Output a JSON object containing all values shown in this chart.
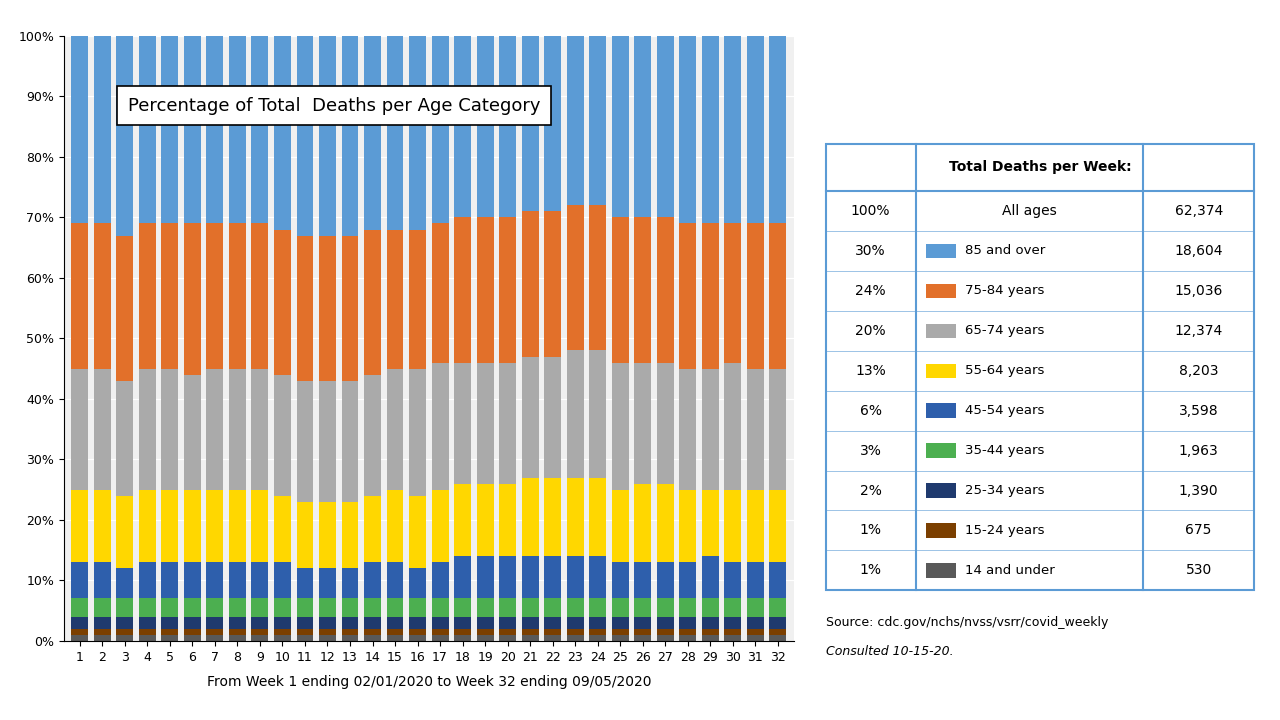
{
  "title": "Percentage of Total  Deaths per Age Category",
  "xlabel": "From Week 1 ending 02/01/2020 to Week 32 ending 09/05/2020",
  "weeks": [
    1,
    2,
    3,
    4,
    5,
    6,
    7,
    8,
    9,
    10,
    11,
    12,
    13,
    14,
    15,
    16,
    17,
    18,
    19,
    20,
    21,
    22,
    23,
    24,
    25,
    26,
    27,
    28,
    29,
    30,
    31,
    32
  ],
  "data": {
    "14 and under": [
      1,
      1,
      1,
      1,
      1,
      1,
      1,
      1,
      1,
      1,
      1,
      1,
      1,
      1,
      1,
      1,
      1,
      1,
      1,
      1,
      1,
      1,
      1,
      1,
      1,
      1,
      1,
      1,
      1,
      1,
      1,
      1
    ],
    "15-24 years": [
      1,
      1,
      1,
      1,
      1,
      1,
      1,
      1,
      1,
      1,
      1,
      1,
      1,
      1,
      1,
      1,
      1,
      1,
      1,
      1,
      1,
      1,
      1,
      1,
      1,
      1,
      1,
      1,
      1,
      1,
      1,
      1
    ],
    "25-34 years": [
      2,
      2,
      2,
      2,
      2,
      2,
      2,
      2,
      2,
      2,
      2,
      2,
      2,
      2,
      2,
      2,
      2,
      2,
      2,
      2,
      2,
      2,
      2,
      2,
      2,
      2,
      2,
      2,
      2,
      2,
      2,
      2
    ],
    "35-44 years": [
      3,
      3,
      3,
      3,
      3,
      3,
      3,
      3,
      3,
      3,
      3,
      3,
      3,
      3,
      3,
      3,
      3,
      3,
      3,
      3,
      3,
      3,
      3,
      3,
      3,
      3,
      3,
      3,
      3,
      3,
      3,
      3
    ],
    "45-54 years": [
      6,
      6,
      5,
      6,
      6,
      6,
      6,
      6,
      6,
      6,
      5,
      5,
      5,
      6,
      6,
      5,
      6,
      7,
      7,
      7,
      7,
      7,
      7,
      7,
      6,
      6,
      6,
      6,
      7,
      6,
      6,
      6
    ],
    "55-64 years": [
      12,
      12,
      12,
      12,
      12,
      12,
      12,
      12,
      12,
      11,
      11,
      11,
      11,
      11,
      12,
      12,
      12,
      12,
      12,
      12,
      13,
      13,
      13,
      13,
      12,
      13,
      13,
      12,
      11,
      12,
      12,
      12
    ],
    "65-74 years": [
      20,
      20,
      19,
      20,
      20,
      19,
      20,
      20,
      20,
      20,
      20,
      20,
      20,
      20,
      20,
      21,
      21,
      20,
      20,
      20,
      20,
      20,
      21,
      21,
      21,
      20,
      20,
      20,
      20,
      21,
      20,
      20
    ],
    "75-84 years": [
      24,
      24,
      24,
      24,
      24,
      25,
      24,
      24,
      24,
      24,
      24,
      24,
      24,
      24,
      23,
      23,
      23,
      24,
      24,
      24,
      24,
      24,
      24,
      24,
      24,
      24,
      24,
      24,
      24,
      23,
      24,
      24
    ],
    "85 and over": [
      30,
      30,
      31,
      30,
      30,
      31,
      30,
      30,
      30,
      30,
      31,
      31,
      31,
      31,
      30,
      30,
      30,
      29,
      29,
      29,
      29,
      29,
      29,
      29,
      29,
      29,
      29,
      29,
      29,
      29,
      29,
      29
    ]
  },
  "colors_map": {
    "14 and under": "#595959",
    "15-24 years": "#7B3F00",
    "25-34 years": "#1F3A6E",
    "35-44 years": "#4CAF50",
    "45-54 years": "#2E5FAC",
    "55-64 years": "#FFD700",
    "65-74 years": "#AAAAAA",
    "75-84 years": "#E2702A",
    "85 and over": "#5B9BD5"
  },
  "age_order": [
    "14 and under",
    "15-24 years",
    "25-34 years",
    "35-44 years",
    "45-54 years",
    "55-64 years",
    "65-74 years",
    "75-84 years",
    "85 and over"
  ],
  "table_header": "Total Deaths per Week:",
  "table_rows": [
    [
      "100%",
      "All ages",
      "62,374",
      ""
    ],
    [
      "30%",
      "85 and over",
      "18,604",
      "#5B9BD5"
    ],
    [
      "24%",
      "75-84 years",
      "15,036",
      "#E2702A"
    ],
    [
      "20%",
      "65-74 years",
      "12,374",
      "#AAAAAA"
    ],
    [
      "13%",
      "55-64 years",
      "8,203",
      "#FFD700"
    ],
    [
      "6%",
      "45-54 years",
      "3,598",
      "#2E5FAC"
    ],
    [
      "3%",
      "35-44 years",
      "1,963",
      "#4CAF50"
    ],
    [
      "2%",
      "25-34 years",
      "1,390",
      "#1F3A6E"
    ],
    [
      "1%",
      "15-24 years",
      "675",
      "#7B3F00"
    ],
    [
      "1%",
      "14 and under",
      "530",
      "#595959"
    ]
  ],
  "table_color": "#5B9BD5",
  "source_text": "Source: cdc.gov/nchs/nvss/vsrr/covid_weekly",
  "consulted_text": "Consulted 10-15-20.",
  "ytick_vals": [
    0,
    10,
    20,
    30,
    40,
    50,
    60,
    70,
    80,
    90,
    100
  ],
  "ytick_labels": [
    "0%",
    "10%",
    "20%",
    "30%",
    "40%",
    "50%",
    "60%",
    "70%",
    "80%",
    "90%",
    "100%"
  ],
  "background_color": "#F0F0F0",
  "bar_width": 0.75
}
